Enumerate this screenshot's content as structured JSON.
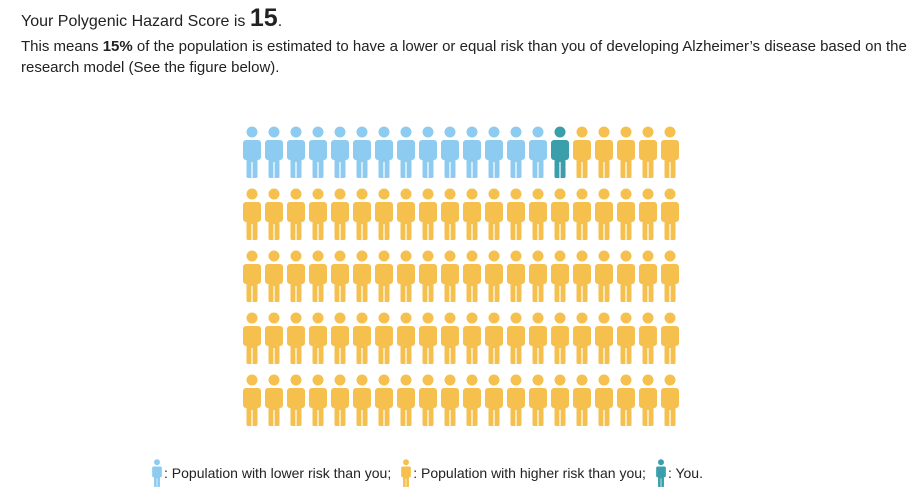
{
  "header": {
    "score_prefix": "Your Polygenic Hazard Score is",
    "score_value": "15",
    "score_suffix": "."
  },
  "description": {
    "before": "This means",
    "percent": "15%",
    "after": "of the population is estimated to have a lower or equal risk than you of developing Alzheimer’s disease based on the research model (See the figure below)."
  },
  "figure": {
    "total": 100,
    "lower_count": 14,
    "you_index": 15,
    "colors": {
      "lower": "#8ecbf0",
      "higher": "#f6c04e",
      "you": "#3a9eab"
    }
  },
  "legend": {
    "lower_label": ": Population with lower risk than you;",
    "higher_label": ": Population with higher risk than you;",
    "you_label": ": You."
  }
}
